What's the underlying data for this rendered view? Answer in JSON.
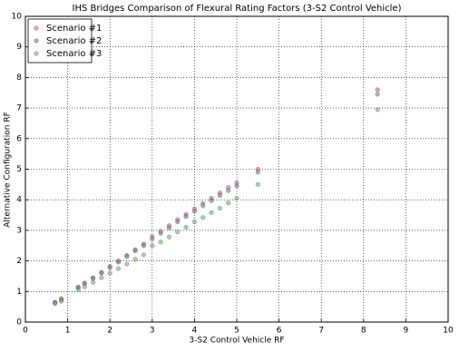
{
  "chart_data": {
    "type": "scatter",
    "title": "IHS Bridges Comparison of Flexural Rating Factors (3-S2 Control Vehicle)",
    "xlabel": "3-S2 Control Vehicle RF",
    "ylabel": "Alternative Configuration RF",
    "x": [
      0.7,
      0.85,
      1.25,
      1.4,
      1.6,
      1.8,
      2.0,
      2.2,
      2.4,
      2.6,
      2.8,
      3.0,
      3.2,
      3.4,
      3.6,
      3.8,
      4.0,
      4.2,
      4.4,
      4.6,
      4.8,
      5.0,
      5.5,
      8.33
    ],
    "series": [
      {
        "name": "Scenario #1",
        "color": "#d65f5f",
        "values": [
          0.65,
          0.77,
          1.15,
          1.28,
          1.45,
          1.63,
          1.82,
          2.0,
          2.18,
          2.37,
          2.55,
          2.8,
          2.97,
          3.15,
          3.35,
          3.52,
          3.7,
          3.88,
          4.05,
          4.22,
          4.4,
          4.55,
          5.0,
          7.6
        ]
      },
      {
        "name": "Scenario #2",
        "color": "#6a7fa8",
        "values": [
          0.63,
          0.72,
          1.12,
          1.25,
          1.42,
          1.6,
          1.78,
          1.96,
          2.14,
          2.33,
          2.5,
          2.72,
          2.9,
          3.08,
          3.28,
          3.45,
          3.62,
          3.8,
          3.97,
          4.14,
          4.3,
          4.45,
          4.9,
          7.45
        ]
      },
      {
        "name": "Scenario #3",
        "color": "#6fb86f",
        "values": [
          0.6,
          0.68,
          1.05,
          1.15,
          1.3,
          1.45,
          1.6,
          1.75,
          1.9,
          2.05,
          2.2,
          2.5,
          2.62,
          2.78,
          2.95,
          3.1,
          3.28,
          3.42,
          3.58,
          3.72,
          3.9,
          4.05,
          4.5,
          6.95
        ]
      }
    ],
    "xlim": [
      0,
      10
    ],
    "ylim": [
      0,
      10
    ],
    "xticks": [
      0,
      1,
      2,
      3,
      4,
      5,
      6,
      7,
      8,
      9,
      10
    ],
    "yticks": [
      0,
      1,
      2,
      3,
      4,
      5,
      6,
      7,
      8,
      9,
      10
    ],
    "grid": true,
    "legend": "upper left"
  }
}
